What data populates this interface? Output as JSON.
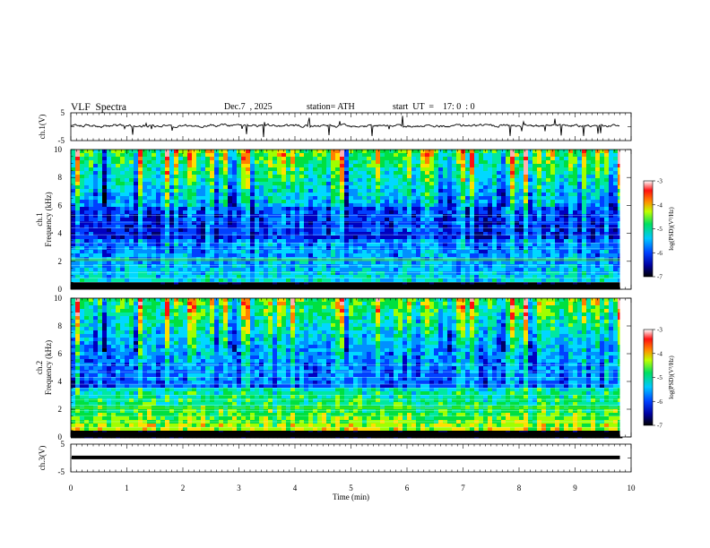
{
  "header": {
    "title": "VLF  Spectra",
    "date": "Dec.7  , 2025",
    "station": "station= ATH",
    "start": "start  UT  =    17: 0  : 0"
  },
  "chart_data": [
    {
      "type": "line",
      "name": "ch1-waveform",
      "ylabel": "ch.1(V)",
      "yticks": [
        "5",
        "-5"
      ],
      "ylim": [
        -5,
        5
      ],
      "xlim": [
        0,
        10
      ],
      "note": "noisy signal near 0 V across 0-9.8 min"
    },
    {
      "type": "heatmap",
      "name": "ch1-spectrogram",
      "ylabel_top": "ch.1",
      "ylabel": "Frequency  (kHz)",
      "yticks": [
        "0",
        "2",
        "4",
        "6",
        "8",
        "10"
      ],
      "ylim": [
        0,
        10
      ],
      "xlim": [
        0,
        9.8
      ],
      "colorbar": {
        "label": "log(PSD)(V²/Hz)",
        "ticks": [
          "-3",
          "-4",
          "-5",
          "-6",
          "-7"
        ],
        "range": [
          -7,
          -3
        ]
      }
    },
    {
      "type": "heatmap",
      "name": "ch2-spectrogram",
      "ylabel_top": "ch.2",
      "ylabel": "Frequency  (kHz)",
      "yticks": [
        "0",
        "2",
        "4",
        "6",
        "8",
        "10"
      ],
      "ylim": [
        0,
        10
      ],
      "xlim": [
        0,
        9.8
      ],
      "colorbar": {
        "label": "log(PSD)(V²/Hz)",
        "ticks": [
          "-3",
          "-4",
          "-5",
          "-6",
          "-7"
        ],
        "range": [
          -7,
          -3
        ]
      }
    },
    {
      "type": "line",
      "name": "ch3-waveform",
      "ylabel": "ch.3(V)",
      "yticks": [
        "5",
        "-5"
      ],
      "ylim": [
        -5,
        5
      ],
      "xlim": [
        0,
        10
      ],
      "note": "flat signal near -1 V"
    }
  ],
  "xaxis": {
    "label": "Time  (min)",
    "ticks": [
      "0",
      "1",
      "2",
      "3",
      "4",
      "5",
      "6",
      "7",
      "8",
      "9",
      "10"
    ]
  }
}
